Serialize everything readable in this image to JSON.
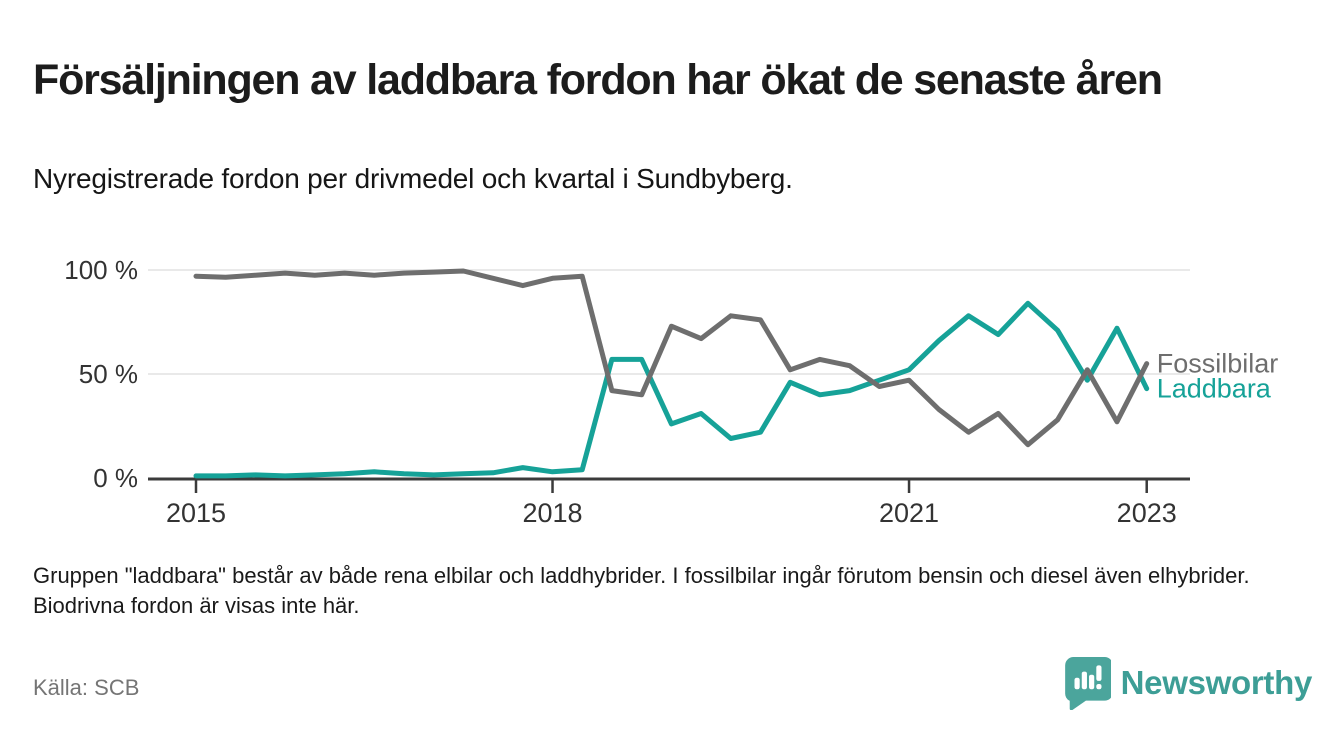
{
  "header": {
    "title": "Försäljningen av laddbara fordon har ökat de senaste åren",
    "subtitle": "Nyregistrerade fordon per drivmedel och kvartal i Sundbyberg."
  },
  "chart_data": {
    "type": "line",
    "x_unit": "quarter",
    "x_start": "2015-Q1",
    "x_end": "2023-Q1",
    "x_tick_labels": [
      "2015",
      "2018",
      "2021",
      "2023"
    ],
    "x_tick_indices": [
      0,
      12,
      24,
      32
    ],
    "y_tick_labels": [
      "100 %",
      "50 %",
      "0 %"
    ],
    "y_tick_values": [
      100,
      50,
      0
    ],
    "ylim": [
      0,
      100
    ],
    "grid": "horizontal",
    "legend_position": "right-of-line-ends",
    "series": [
      {
        "name": "Fossilbilar",
        "color": "#6e6e6e",
        "values": [
          97,
          96.5,
          97.5,
          98.5,
          97.5,
          98.5,
          97.5,
          98.5,
          99,
          99.5,
          96,
          92.5,
          96,
          97,
          42,
          40,
          73,
          67,
          78,
          76,
          52,
          57,
          54,
          44,
          47,
          33,
          22,
          31,
          16,
          28,
          52,
          27,
          55
        ]
      },
      {
        "name": "Laddbara",
        "color": "#16a298",
        "values": [
          1,
          1,
          1.5,
          1,
          1.5,
          2,
          3,
          2,
          1.5,
          2,
          2.5,
          5,
          3,
          4,
          57,
          57,
          26,
          31,
          19,
          22,
          46,
          40,
          42,
          47,
          52,
          66,
          78,
          69,
          84,
          71,
          47,
          72,
          43
        ]
      }
    ]
  },
  "footnote": "Gruppen \"laddbara\" består av både rena elbilar och laddhybrider. I fossilbilar ingår förutom bensin och diesel även elhybrider. Biodrivna fordon är visas inte här.",
  "source": "Källa: SCB",
  "logo": {
    "text": "Newsworthy",
    "icon": "newsworthy-speech-bubble-bar-chart-icon",
    "icon_color": "#4ba59c",
    "text_color": "#3d9e96"
  },
  "style_colors": {
    "axis": "#3b3b3b",
    "gridline": "#e2e2e2",
    "tick_label": "#333333"
  }
}
